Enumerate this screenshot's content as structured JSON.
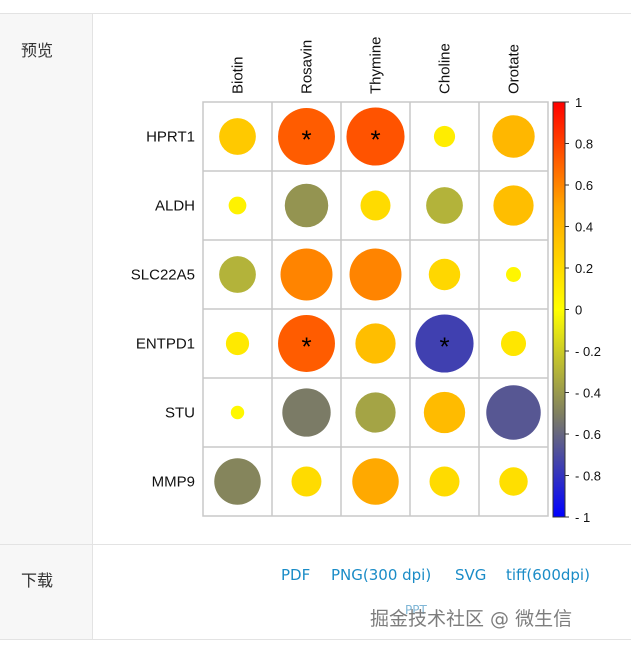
{
  "labels": {
    "preview": "预览",
    "download": "下载"
  },
  "downloads": {
    "pdf": "PDF",
    "png": "PNG(300 dpi)",
    "svg": "SVG",
    "tiff": "tiff(600dpi)",
    "partial": "PPT"
  },
  "watermark": "掘金技术社区 @ 微生信",
  "chart_data": {
    "type": "heatmap",
    "subtype": "correlation bubble matrix",
    "columns": [
      "Biotin",
      "Rosavin",
      "Thymine",
      "Choline",
      "Orotate"
    ],
    "rows": [
      "HPRT1",
      "ALDH",
      "SLC22A5",
      "ENTPD1",
      "STU",
      "MMP9"
    ],
    "values": [
      [
        0.3,
        0.72,
        0.75,
        0.1,
        0.4
      ],
      [
        0.07,
        -0.42,
        0.2,
        -0.3,
        0.36
      ],
      [
        -0.3,
        0.6,
        0.6,
        0.22,
        0.05
      ],
      [
        0.12,
        0.72,
        0.36,
        -0.75,
        0.14
      ],
      [
        0.04,
        -0.52,
        -0.36,
        0.38,
        -0.66
      ],
      [
        -0.48,
        0.2,
        0.48,
        0.2,
        0.18
      ]
    ],
    "significant": [
      [
        false,
        true,
        true,
        false,
        false
      ],
      [
        false,
        false,
        false,
        false,
        false
      ],
      [
        false,
        false,
        false,
        false,
        false
      ],
      [
        false,
        true,
        false,
        true,
        false
      ],
      [
        false,
        false,
        false,
        false,
        false
      ],
      [
        false,
        false,
        false,
        false,
        false
      ]
    ],
    "significance_mark": "*",
    "colorbar": {
      "range": [
        -1,
        1
      ],
      "colors": [
        "#0000ff",
        "#808060",
        "#ffff00",
        "#ffa500",
        "#ff0000"
      ],
      "tick_labels": [
        "1",
        "0.8",
        "0.6",
        "0.4",
        "0.2",
        "0",
        "- 0.2",
        "- 0.4",
        "- 0.6",
        "- 0.8",
        "- 1"
      ]
    },
    "grid": true
  }
}
